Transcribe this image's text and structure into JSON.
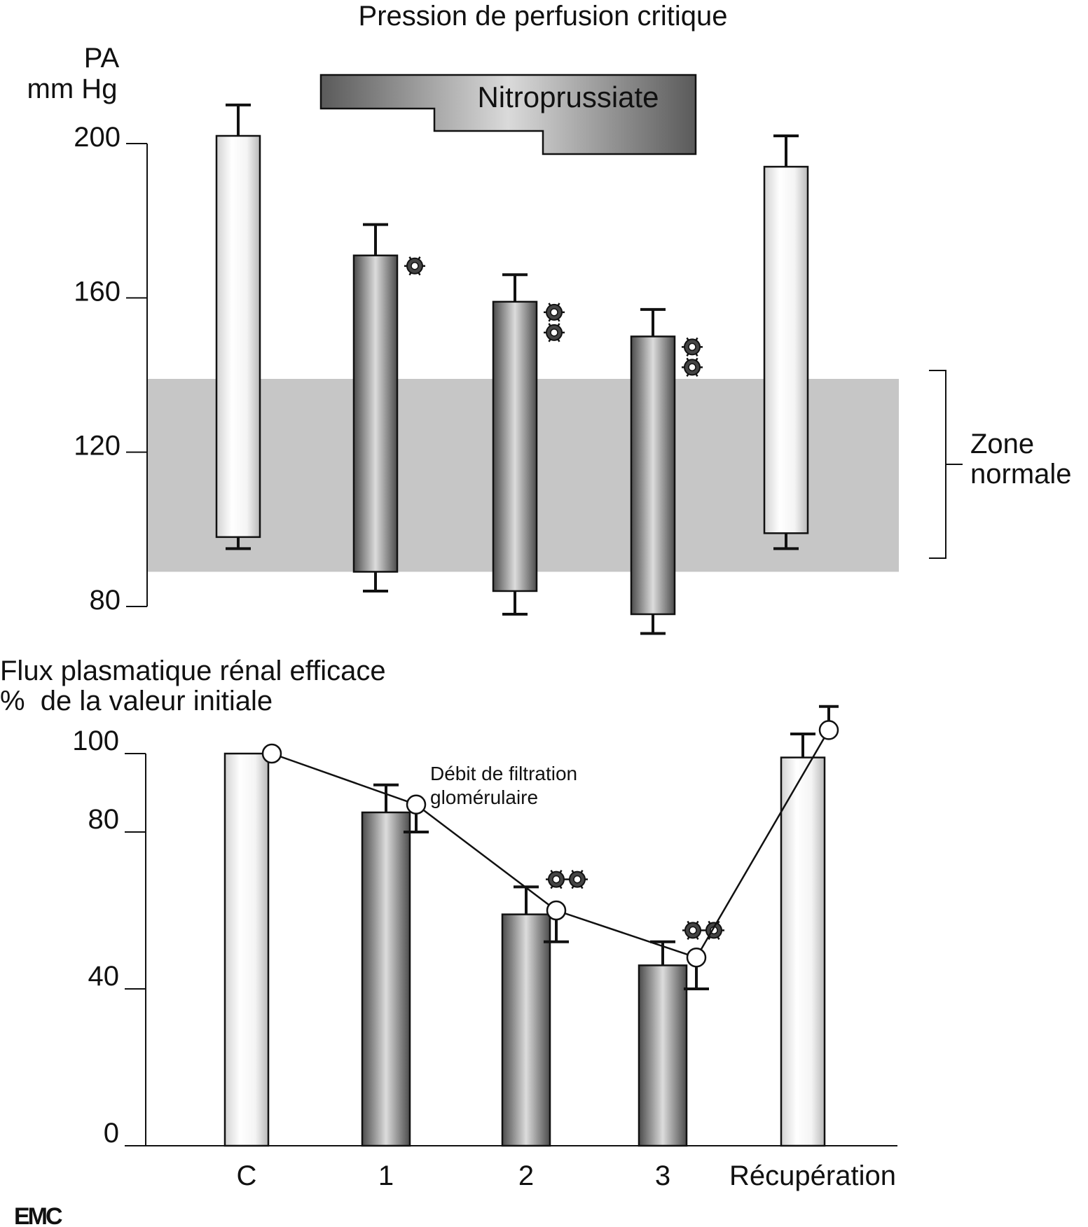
{
  "chart_data": [
    {
      "type": "bar",
      "title": "Pression de perfusion critique",
      "ylabel_line1": "PA",
      "ylabel_line2": "mm Hg",
      "ylim": [
        80,
        200
      ],
      "yticks": [
        80,
        120,
        160,
        200
      ],
      "categories": [
        "C",
        "1",
        "2",
        "3",
        "Récupération"
      ],
      "bars": [
        {
          "category": "C",
          "low": 98,
          "high": 202,
          "err_low": 95,
          "err_high": 210,
          "style": "light"
        },
        {
          "category": "1",
          "low": 89,
          "high": 171,
          "err_low": 84,
          "err_high": 179,
          "style": "dark",
          "significance": 1
        },
        {
          "category": "2",
          "low": 84,
          "high": 159,
          "err_low": 78,
          "err_high": 166,
          "style": "dark",
          "significance": 2
        },
        {
          "category": "3",
          "low": 78,
          "high": 150,
          "err_low": 73,
          "err_high": 157,
          "style": "dark",
          "significance": 2
        },
        {
          "category": "Récupération",
          "low": 99,
          "high": 194,
          "err_low": 95,
          "err_high": 202,
          "style": "light"
        }
      ],
      "normal_zone": {
        "low": 89,
        "high": 139,
        "label_line1": "Zone",
        "label_line2": "normale"
      },
      "treatment_band_label": "Nitroprussiate"
    },
    {
      "type": "bar",
      "title_line1": "Flux plasmatique rénal efficace",
      "title_line2": "%  de la valeur initiale",
      "ylim": [
        0,
        100
      ],
      "yticks": [
        0,
        40,
        80,
        100
      ],
      "categories": [
        "C",
        "1",
        "2",
        "3",
        "Récupération"
      ],
      "series": [
        {
          "kind": "bars",
          "values": [
            100,
            85,
            59,
            46,
            99
          ],
          "err_high": [
            null,
            92,
            66,
            52,
            105
          ],
          "styles": [
            "light",
            "dark",
            "dark",
            "dark",
            "light"
          ],
          "significance": [
            0,
            0,
            2,
            2,
            0
          ]
        },
        {
          "kind": "line",
          "name": "Débit de filtration glomérulaire",
          "values": [
            100,
            87,
            60,
            48,
            106
          ],
          "err_low": [
            null,
            80,
            52,
            40,
            null
          ],
          "err_high": [
            null,
            null,
            null,
            null,
            112
          ]
        }
      ]
    }
  ],
  "logo": "EMC"
}
